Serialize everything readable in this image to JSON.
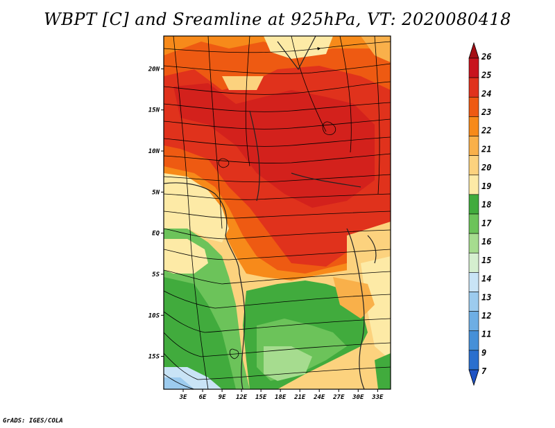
{
  "title": "WBPT [C] and Sreamline at 925hPa, VT: 2020080418",
  "footer": "GrADS: IGES/COLA",
  "map": {
    "lon_range": [
      0,
      35
    ],
    "lat_range": [
      -19,
      24
    ],
    "lon_ticks": [
      "3E",
      "6E",
      "9E",
      "12E",
      "15E",
      "18E",
      "21E",
      "24E",
      "27E",
      "30E",
      "33E"
    ],
    "lat_ticks": [
      "20N",
      "15N",
      "10N",
      "5N",
      "EQ",
      "5S",
      "10S",
      "15S"
    ]
  },
  "colorbar": {
    "levels": [
      "26",
      "25",
      "24",
      "23",
      "22",
      "21",
      "20",
      "19",
      "18",
      "17",
      "16",
      "15",
      "14",
      "13",
      "12",
      "11",
      "9",
      "7"
    ],
    "colors": [
      "#a50f15",
      "#c8141e",
      "#e0321c",
      "#ee5a12",
      "#f78a1a",
      "#f9b04a",
      "#fcd27e",
      "#fdeaa6",
      "#41ab3d",
      "#6cc35a",
      "#a6dc8f",
      "#d5efcf",
      "#c9e4f6",
      "#9ccbee",
      "#6eaee4",
      "#4690d8",
      "#2a6fce",
      "#1f53c4"
    ]
  }
}
